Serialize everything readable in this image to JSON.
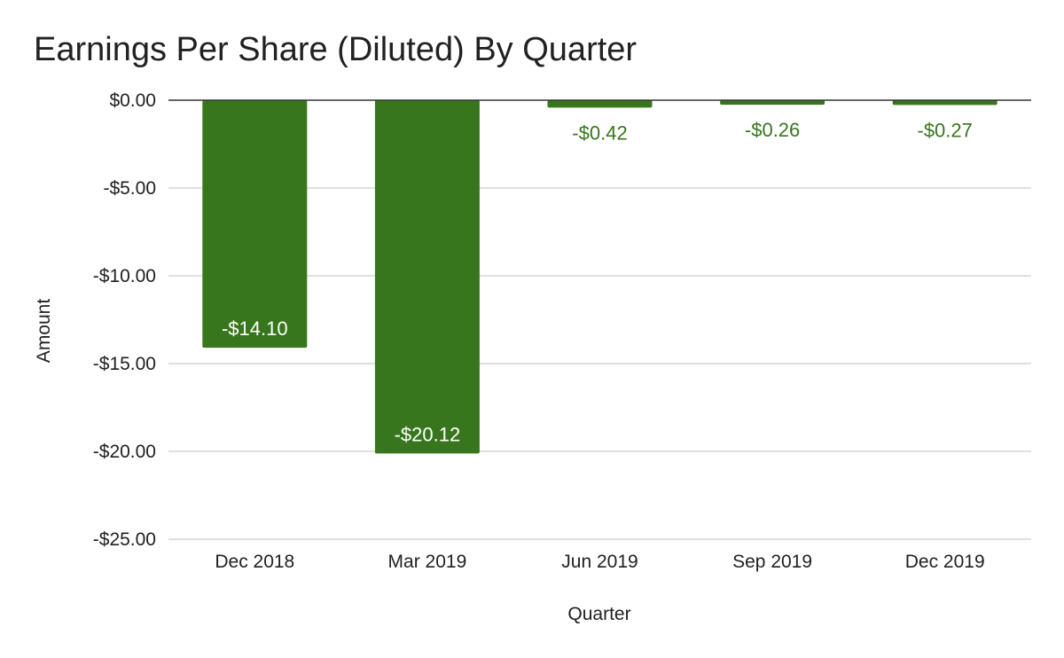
{
  "chart_data": {
    "type": "bar",
    "title": "Earnings Per Share (Diluted) By Quarter",
    "xlabel": "Quarter",
    "ylabel": "Amount",
    "categories": [
      "Dec 2018",
      "Mar 2019",
      "Jun 2019",
      "Sep 2019",
      "Dec 2019"
    ],
    "values": [
      -14.1,
      -20.12,
      -0.42,
      -0.26,
      -0.27
    ],
    "data_labels": [
      "-$14.10",
      "-$20.12",
      "-$0.42",
      "-$0.26",
      "-$0.27"
    ],
    "ylim": [
      -25,
      0
    ],
    "yticks": [
      0,
      -5,
      -10,
      -15,
      -20,
      -25
    ],
    "ytick_labels": [
      "$0.00",
      "-$5.00",
      "-$10.00",
      "-$15.00",
      "-$20.00",
      "-$25.00"
    ],
    "grid": true,
    "legend": "none",
    "colors": {
      "bar": "#38761d",
      "label_inside": "#ffffff",
      "label_outside": "#38761d",
      "grid": "#cccccc",
      "baseline": "#333333",
      "text": "#212121"
    }
  }
}
